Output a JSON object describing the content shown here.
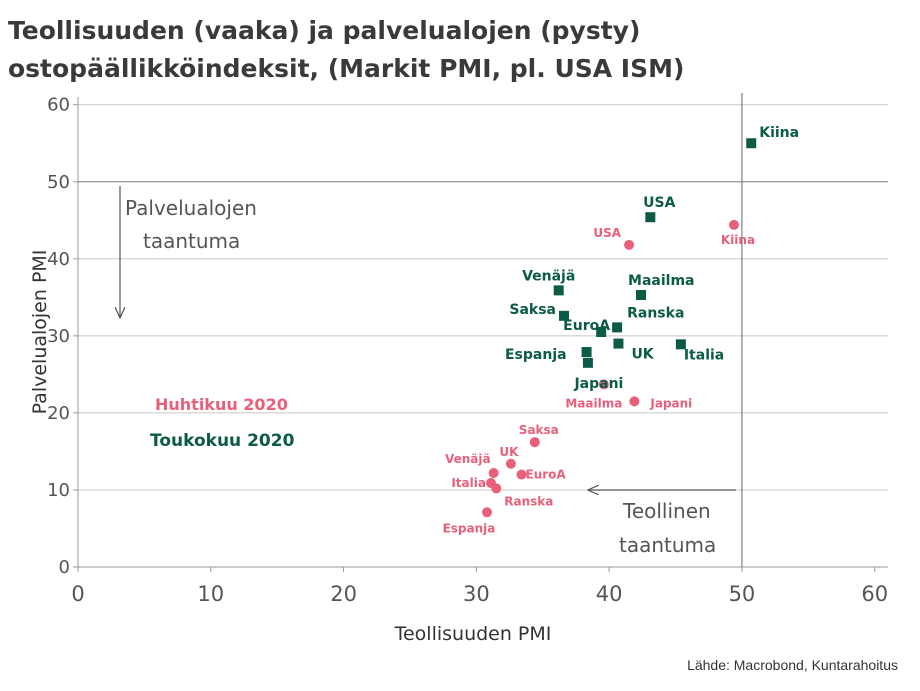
{
  "title_lines": [
    "Teollisuuden (vaaka) ja palvelualojen (pysty)",
    "ostopäällikköindeksit, (Markit PMI, pl. USA ISM)"
  ],
  "source": "Lähde: Macrobond, Kuntarahoitus",
  "colors": {
    "april": "#e8607a",
    "may": "#0b5b46",
    "axis_text": "#555555",
    "grid": "#c8c8c8"
  },
  "chart_data": {
    "type": "scatter",
    "xlabel": "Teollisuuden PMI",
    "ylabel": "Palvelualojen PMI",
    "xlim": [
      0,
      61
    ],
    "ylim": [
      0,
      61
    ],
    "x_ticks": [
      0,
      10,
      20,
      30,
      40,
      50,
      60
    ],
    "y_ticks": [
      0,
      10,
      20,
      30,
      40,
      50,
      60
    ],
    "grid": "horizontal",
    "reference_lines": {
      "x": 50,
      "y": 50
    },
    "annotations": {
      "services": [
        "Palvelualojen",
        "taantuma"
      ],
      "industry": [
        "Teollinen",
        "taantuma"
      ]
    },
    "legend": [
      {
        "name": "Huhtikuu 2020",
        "color": "#e8607a",
        "marker": "circle"
      },
      {
        "name": "Toukokuu 2020",
        "color": "#0b5b46",
        "marker": "square"
      }
    ],
    "series": [
      {
        "name": "Huhtikuu 2020",
        "marker": "circle",
        "color": "#e8607a",
        "points": [
          {
            "label": "USA",
            "x": 41.5,
            "y": 41.8
          },
          {
            "label": "Kiina",
            "x": 49.4,
            "y": 44.4
          },
          {
            "label": "Japani",
            "x": 41.9,
            "y": 21.5
          },
          {
            "label": "Maailma",
            "x": 39.6,
            "y": 23.7
          },
          {
            "label": "Saksa",
            "x": 34.4,
            "y": 16.2
          },
          {
            "label": "UK",
            "x": 32.6,
            "y": 13.4
          },
          {
            "label": "EuroA",
            "x": 33.4,
            "y": 12.0
          },
          {
            "label": "Venäjä",
            "x": 31.3,
            "y": 12.2
          },
          {
            "label": "Italia",
            "x": 31.1,
            "y": 10.9
          },
          {
            "label": "Ranska",
            "x": 31.5,
            "y": 10.2
          },
          {
            "label": "Espanja",
            "x": 30.8,
            "y": 7.1
          }
        ]
      },
      {
        "name": "Toukokuu 2020",
        "marker": "square",
        "color": "#0b5b46",
        "points": [
          {
            "label": "Kiina",
            "x": 50.7,
            "y": 55.0
          },
          {
            "label": "USA",
            "x": 43.1,
            "y": 45.4
          },
          {
            "label": "Maailma",
            "x": 42.4,
            "y": 35.3
          },
          {
            "label": "Venäjä",
            "x": 36.2,
            "y": 35.9
          },
          {
            "label": "Saksa",
            "x": 36.6,
            "y": 32.6
          },
          {
            "label": "EuroA",
            "x": 39.4,
            "y": 30.5
          },
          {
            "label": "Ranska",
            "x": 40.6,
            "y": 31.1
          },
          {
            "label": "UK",
            "x": 40.7,
            "y": 29.0
          },
          {
            "label": "Italia",
            "x": 45.4,
            "y": 28.9
          },
          {
            "label": "Espanja",
            "x": 38.3,
            "y": 27.9
          },
          {
            "label": "Japani",
            "x": 38.4,
            "y": 26.5
          }
        ]
      }
    ]
  }
}
